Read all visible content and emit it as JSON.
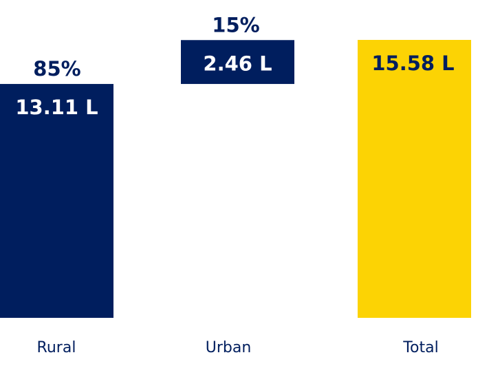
{
  "chart_data": {
    "type": "waterfall-bar",
    "categories": [
      "Rural",
      "Urban",
      "Total"
    ],
    "values": [
      13.11,
      2.46,
      15.58
    ],
    "value_labels": [
      "13.11 L",
      "2.46 L",
      "15.58 L"
    ],
    "share_labels": [
      "85%",
      "15%",
      ""
    ],
    "unit": "L",
    "colors": {
      "Rural": "#001E5E",
      "Urban": "#001E5E",
      "Total": "#FCD304",
      "share_text": "#001E5E",
      "category_text": "#001E5E"
    },
    "title": "",
    "xlabel": "",
    "ylabel": "",
    "grid": false
  }
}
